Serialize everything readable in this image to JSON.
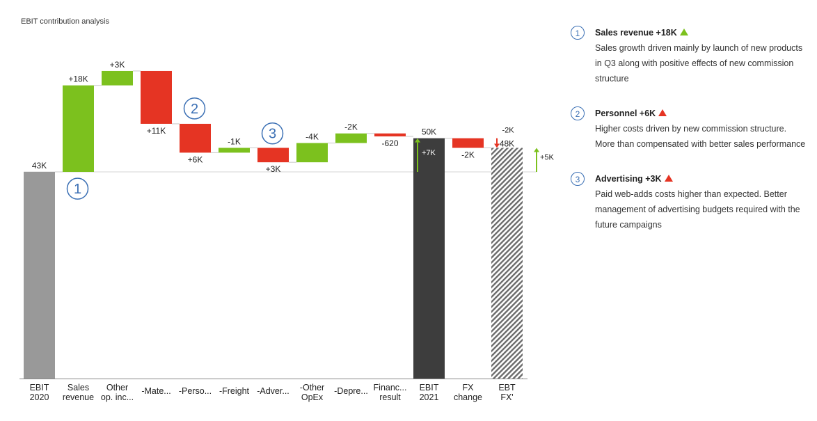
{
  "chart_title": "EBIT contribution analysis",
  "chart_data": {
    "type": "waterfall",
    "title": "EBIT contribution analysis",
    "unit": "K",
    "ylim": [
      0,
      90
    ],
    "colors": {
      "base": "#999999",
      "total": "#3d3d3d",
      "increase": "#7cc11e",
      "decrease": "#e53423",
      "hatch": "#6b6b6b",
      "marker": "#3a6fb4"
    },
    "categories": [
      {
        "label": [
          "EBIT",
          "2020"
        ],
        "kind": "total",
        "value": 43,
        "value_label": "43K"
      },
      {
        "label": [
          "Sales",
          "revenue"
        ],
        "kind": "increase",
        "delta": 18,
        "value_label": "+18K"
      },
      {
        "label": [
          "Other",
          "op. inc..."
        ],
        "kind": "increase",
        "delta": 3,
        "value_label": "+3K"
      },
      {
        "label": [
          "-Mate..."
        ],
        "kind": "decrease",
        "delta": -11,
        "value_label": "+11K"
      },
      {
        "label": [
          "-Perso..."
        ],
        "kind": "decrease",
        "delta": -6,
        "value_label": "+6K"
      },
      {
        "label": [
          "-Freight"
        ],
        "kind": "increase",
        "delta": 1,
        "value_label": "-1K"
      },
      {
        "label": [
          "-Adver..."
        ],
        "kind": "decrease",
        "delta": -3,
        "value_label": "+3K"
      },
      {
        "label": [
          "-Other",
          "OpEx"
        ],
        "kind": "increase",
        "delta": 4,
        "value_label": "-4K"
      },
      {
        "label": [
          "-Depre..."
        ],
        "kind": "increase",
        "delta": 2,
        "value_label": "-2K"
      },
      {
        "label": [
          "Financ...",
          "result"
        ],
        "kind": "decrease",
        "delta": -0.62,
        "value_label": "-620"
      },
      {
        "label": [
          "EBIT",
          "2021"
        ],
        "kind": "total2",
        "value": 50,
        "value_label": "50K"
      },
      {
        "label": [
          "FX",
          "change"
        ],
        "kind": "decrease",
        "delta": -2,
        "value_label": "-2K"
      },
      {
        "label": [
          "EBT",
          "FX'"
        ],
        "kind": "hatched",
        "value": 48,
        "value_label": "48K"
      }
    ],
    "differences": [
      {
        "label": "+7K",
        "from": 43,
        "to": 50,
        "at": "EBIT 2021"
      },
      {
        "label": "-2K",
        "from": 50,
        "to": 48,
        "at": "EBT FX'"
      },
      {
        "label": "+5K",
        "from": 43,
        "to": 48,
        "at": "right"
      }
    ],
    "markers": [
      {
        "number": "1",
        "at": "Sales revenue"
      },
      {
        "number": "2",
        "at": "-Perso..."
      },
      {
        "number": "3",
        "at": "-Adver..."
      }
    ]
  },
  "notes": [
    {
      "number": "1",
      "title": "Sales revenue +18K",
      "trend": "up",
      "arrow_color": "#7cc11e",
      "body": "Sales growth driven mainly by launch of new products in Q3 along with positive effects of new commission structure"
    },
    {
      "number": "2",
      "title": "Personnel +6K",
      "trend": "up",
      "arrow_color": "#e53423",
      "body": "Higher costs driven by new commission structure. More than compensated with better sales performance"
    },
    {
      "number": "3",
      "title": "Advertising +3K",
      "trend": "up",
      "arrow_color": "#e53423",
      "body": "Paid web-adds costs higher than expected. Better management of advertising budgets required with the future campaigns"
    }
  ]
}
